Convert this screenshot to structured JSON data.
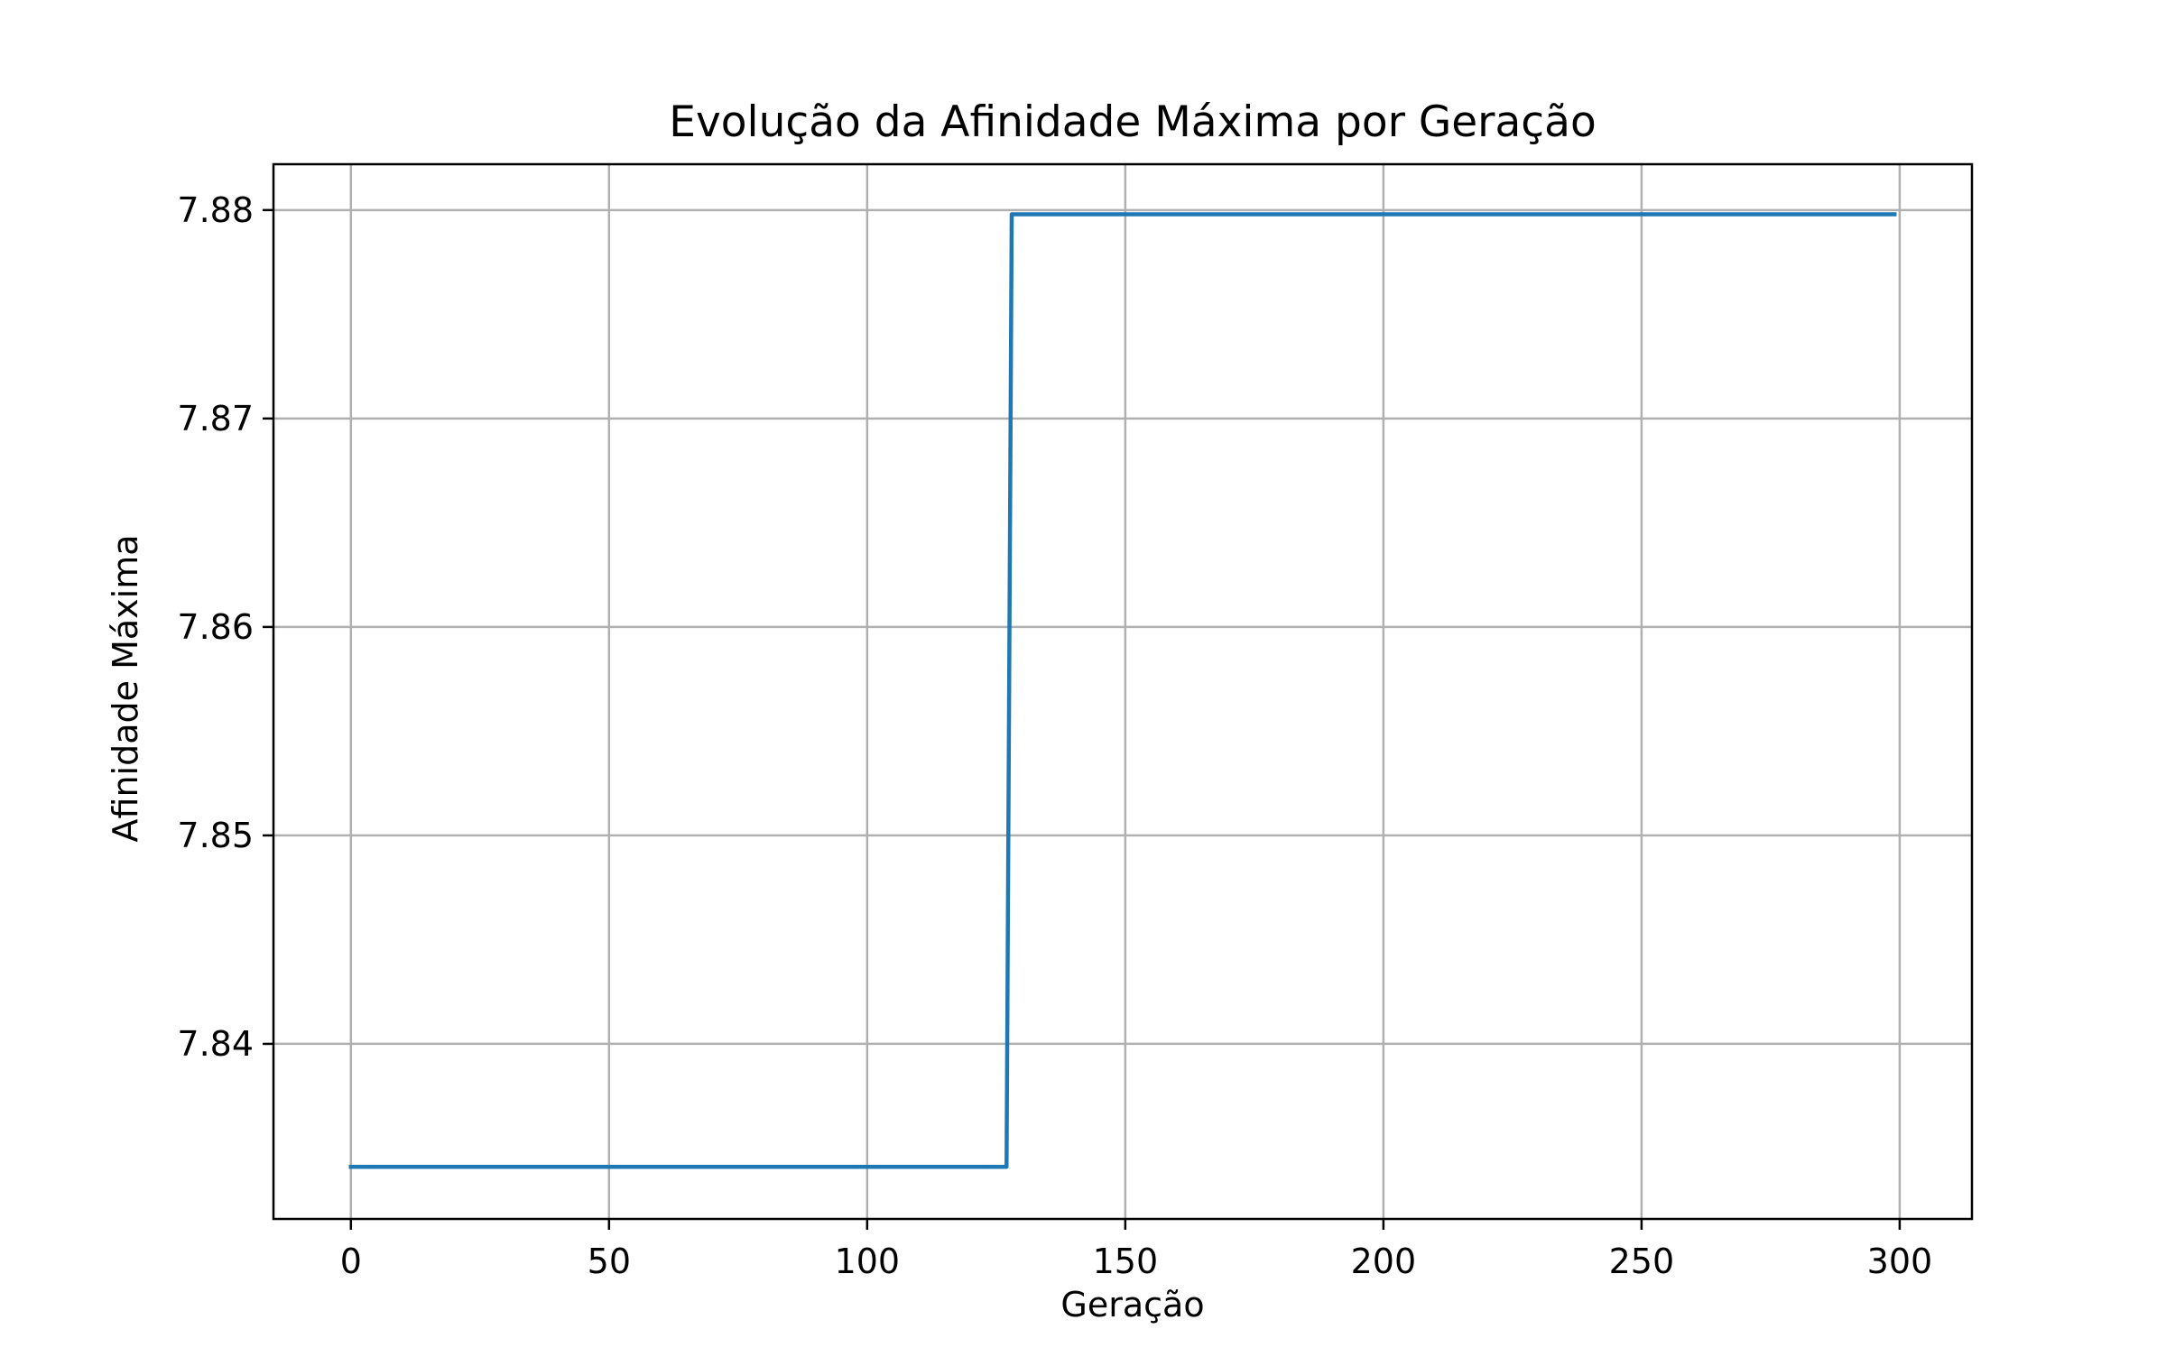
{
  "chart_data": {
    "type": "line",
    "title": "Evolução da Afinidade Máxima por Geração",
    "xlabel": "Geração",
    "ylabel": "Afinidade Máxima",
    "xlim": [
      -15,
      314
    ],
    "ylim": [
      7.8316,
      7.8822
    ],
    "x_ticks": [
      0,
      50,
      100,
      150,
      200,
      250,
      300
    ],
    "y_ticks": [
      7.84,
      7.85,
      7.86,
      7.87,
      7.88
    ],
    "y_tick_labels": [
      "7.84",
      "7.85",
      "7.86",
      "7.87",
      "7.88"
    ],
    "grid": true,
    "series": [
      {
        "color": "#1f77b4",
        "points": [
          [
            0,
            7.8341
          ],
          [
            127,
            7.8341
          ],
          [
            128,
            7.8798
          ],
          [
            299,
            7.8798
          ]
        ]
      }
    ]
  }
}
